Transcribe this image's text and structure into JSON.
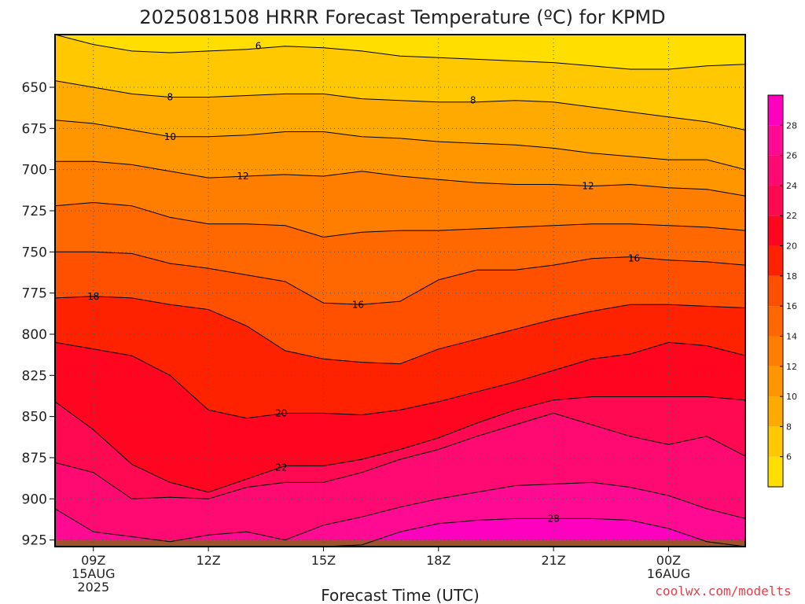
{
  "chart_data": {
    "type": "contour",
    "title": "2025081508 HRRR Forecast Temperature (ºC) for KPMD",
    "xlabel": "Forecast Time (UTC)",
    "ylabel": "",
    "credit": "coolwx.com/modelts",
    "x": {
      "unit": "hours since 2025-08-15 08Z",
      "lim": [
        0,
        18
      ],
      "ticks": [
        {
          "value": 1,
          "lines": [
            "09Z",
            "15AUG",
            "2025"
          ]
        },
        {
          "value": 4,
          "lines": [
            "12Z"
          ]
        },
        {
          "value": 7,
          "lines": [
            "15Z"
          ]
        },
        {
          "value": 10,
          "lines": [
            "18Z"
          ]
        },
        {
          "value": 13,
          "lines": [
            "21Z"
          ]
        },
        {
          "value": 16,
          "lines": [
            "00Z",
            "16AUG"
          ]
        }
      ]
    },
    "y": {
      "unit": "hPa",
      "lim": [
        929,
        618
      ],
      "ticks": [
        650,
        675,
        700,
        725,
        750,
        775,
        800,
        825,
        850,
        875,
        900,
        925
      ]
    },
    "ground_level": 925,
    "grid": true,
    "colorbar": {
      "levels": [
        4,
        6,
        8,
        10,
        12,
        14,
        16,
        18,
        20,
        22,
        24,
        26,
        28,
        30
      ],
      "tick_labels": [
        6,
        8,
        10,
        12,
        14,
        16,
        18,
        20,
        22,
        24,
        26,
        28
      ],
      "colors": [
        "#ffde00",
        "#ffc800",
        "#ffaa00",
        "#ff9600",
        "#ff7e00",
        "#ff6800",
        "#ff5000",
        "#ff2200",
        "#ff0520",
        "#ff0a52",
        "#ff0a72",
        "#ff0a92",
        "#ff00be"
      ]
    },
    "x_samples": [
      0,
      1,
      2,
      3,
      4,
      5,
      6,
      7,
      8,
      9,
      10,
      11,
      12,
      13,
      14,
      15,
      16,
      17,
      18
    ],
    "isotherms": [
      {
        "value": 6,
        "p": [
          618,
          624,
          628,
          629,
          628,
          627,
          625,
          626,
          628,
          631,
          632,
          633,
          634,
          635,
          637,
          639,
          639,
          637,
          636
        ]
      },
      {
        "value": 8,
        "p": [
          646,
          650,
          654,
          656,
          656,
          655,
          654,
          654,
          657,
          658,
          659,
          659,
          658,
          659,
          662,
          665,
          668,
          671,
          676
        ]
      },
      {
        "value": 10,
        "p": [
          670,
          672,
          676,
          680,
          680,
          679,
          677,
          677,
          680,
          681,
          683,
          684,
          685,
          687,
          690,
          692,
          694,
          694,
          700
        ]
      },
      {
        "value": 12,
        "p": [
          695,
          695,
          697,
          701,
          705,
          704,
          703,
          704,
          701,
          704,
          706,
          708,
          709,
          709,
          710,
          709,
          711,
          712,
          716
        ]
      },
      {
        "value": 14,
        "p": [
          722,
          720,
          722,
          729,
          733,
          733,
          734,
          741,
          738,
          737,
          737,
          736,
          735,
          734,
          733,
          733,
          734,
          735,
          737
        ]
      },
      {
        "value": 16,
        "p": [
          750,
          750,
          751,
          757,
          760,
          764,
          768,
          781,
          782,
          780,
          767,
          761,
          761,
          758,
          754,
          753,
          755,
          756,
          758
        ]
      },
      {
        "value": 18,
        "p": [
          778,
          777,
          778,
          782,
          785,
          795,
          810,
          815,
          817,
          818,
          809,
          803,
          797,
          791,
          786,
          782,
          782,
          783,
          784
        ]
      },
      {
        "value": 20,
        "p": [
          805,
          809,
          813,
          825,
          846,
          851,
          848,
          848,
          849,
          846,
          841,
          835,
          829,
          822,
          815,
          812,
          805,
          807,
          813
        ]
      },
      {
        "value": 22,
        "p": [
          841,
          858,
          879,
          890,
          896,
          888,
          880,
          880,
          876,
          870,
          863,
          854,
          846,
          840,
          838,
          838,
          838,
          838,
          840
        ]
      },
      {
        "value": 24,
        "p": [
          878,
          884,
          900,
          899,
          900,
          893,
          890,
          890,
          884,
          876,
          870,
          862,
          855,
          848,
          855,
          862,
          867,
          862,
          874
        ]
      },
      {
        "value": 26,
        "p": [
          906,
          920,
          923,
          926,
          922,
          920,
          925,
          916,
          911,
          905,
          900,
          896,
          892,
          891,
          890,
          893,
          898,
          906,
          912
        ]
      },
      {
        "value": 28,
        "p": [
          929,
          929,
          929,
          929,
          929,
          929,
          929,
          929,
          928,
          920,
          915,
          913,
          912,
          912,
          912,
          913,
          918,
          926,
          929
        ]
      }
    ],
    "contour_labels": [
      {
        "x": 5.3,
        "p": 625,
        "text": "6"
      },
      {
        "x": 3.0,
        "p": 656,
        "text": "8"
      },
      {
        "x": 10.9,
        "p": 658,
        "text": "8"
      },
      {
        "x": 3.0,
        "p": 680,
        "text": "10"
      },
      {
        "x": 4.9,
        "p": 704,
        "text": "12"
      },
      {
        "x": 13.9,
        "p": 710,
        "text": "12"
      },
      {
        "x": 1.0,
        "p": 777,
        "text": "18"
      },
      {
        "x": 7.9,
        "p": 782,
        "text": "16"
      },
      {
        "x": 15.1,
        "p": 754,
        "text": "16"
      },
      {
        "x": 5.9,
        "p": 848,
        "text": "20"
      },
      {
        "x": 5.9,
        "p": 881,
        "text": "22"
      },
      {
        "x": 13.0,
        "p": 912,
        "text": "28"
      }
    ]
  }
}
